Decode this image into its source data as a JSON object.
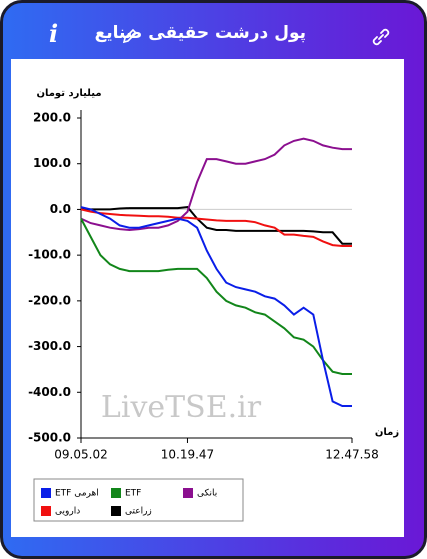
{
  "header": {
    "title": "پول درشت حقیقی صنایع",
    "info": "i"
  },
  "chart_data": {
    "type": "line",
    "y_label": "میلیارد تومان",
    "x_label": "زمان",
    "watermark": "LiveTSE.ir",
    "categories": [
      "09.05.02",
      null,
      null,
      null,
      null,
      null,
      null,
      null,
      null,
      null,
      null,
      "10.19.47",
      null,
      null,
      null,
      null,
      null,
      null,
      null,
      null,
      null,
      null,
      null,
      null,
      null,
      null,
      null,
      null,
      "12.47.58"
    ],
    "ylim": [
      -500,
      200
    ],
    "yticks": [
      {
        "value": -500,
        "label": "-500.0"
      },
      {
        "value": -400,
        "label": "-400.0"
      },
      {
        "value": -300,
        "label": "-300.0"
      },
      {
        "value": -200,
        "label": "-200.0"
      },
      {
        "value": -100,
        "label": "-100.0"
      },
      {
        "value": 0,
        "label": "0.0"
      },
      {
        "value": 100,
        "label": "100.0"
      },
      {
        "value": 200,
        "label": "200.0"
      }
    ],
    "grid": false,
    "series": [
      {
        "name": "ETF اهرمی",
        "color": "#0a1ee8",
        "values": [
          5,
          0,
          -10,
          -20,
          -35,
          -40,
          -40,
          -35,
          -30,
          -25,
          -20,
          -25,
          -40,
          -90,
          -130,
          -160,
          -170,
          -175,
          -180,
          -190,
          -195,
          -210,
          -230,
          -215,
          -230,
          -330,
          -420,
          -430,
          -430
        ]
      },
      {
        "name": "ETF",
        "color": "#12861a",
        "values": [
          -20,
          -60,
          -100,
          -120,
          -130,
          -135,
          -135,
          -135,
          -135,
          -132,
          -130,
          -130,
          -130,
          -150,
          -180,
          -200,
          -210,
          -215,
          -225,
          -230,
          -245,
          -260,
          -280,
          -285,
          -300,
          -330,
          -355,
          -360,
          -360
        ]
      },
      {
        "name": "بانکی",
        "color": "#8b0f8f",
        "values": [
          -20,
          -30,
          -35,
          -40,
          -43,
          -45,
          -43,
          -40,
          -40,
          -35,
          -25,
          -5,
          60,
          110,
          110,
          105,
          100,
          100,
          105,
          110,
          120,
          140,
          150,
          155,
          150,
          140,
          135,
          132,
          132
        ]
      },
      {
        "name": "دارویی",
        "color": "#f01010",
        "values": [
          0,
          -5,
          -8,
          -10,
          -12,
          -13,
          -14,
          -15,
          -15,
          -16,
          -18,
          -18,
          -20,
          -22,
          -24,
          -25,
          -25,
          -25,
          -28,
          -35,
          -40,
          -55,
          -55,
          -58,
          -60,
          -70,
          -78,
          -80,
          -80
        ]
      },
      {
        "name": "زراعتی",
        "color": "#000000",
        "values": [
          0,
          0,
          0,
          0,
          2,
          3,
          3,
          3,
          3,
          3,
          3,
          5,
          -20,
          -40,
          -45,
          -45,
          -47,
          -47,
          -47,
          -47,
          -47,
          -47,
          -47,
          -47,
          -48,
          -50,
          -50,
          -75,
          -75
        ]
      }
    ]
  }
}
